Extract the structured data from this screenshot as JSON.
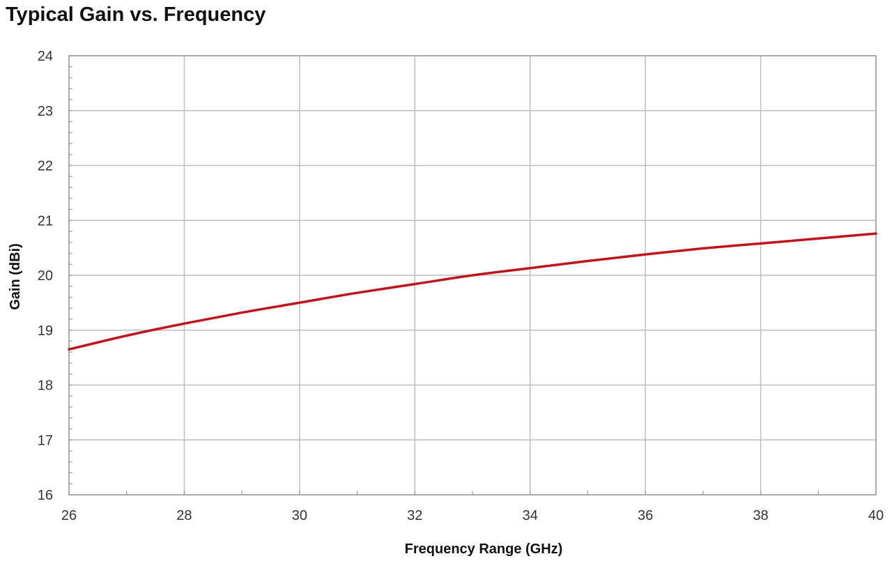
{
  "chart_data": {
    "type": "line",
    "title": "Typical Gain vs. Frequency",
    "xlabel": "Frequency Range (GHz)",
    "ylabel": "Gain (dBi)",
    "xlim": [
      26,
      40
    ],
    "ylim": [
      16,
      24
    ],
    "x_ticks": [
      "26",
      "28",
      "30",
      "32",
      "34",
      "36",
      "38",
      "40"
    ],
    "y_ticks": [
      "16",
      "17",
      "18",
      "19",
      "20",
      "21",
      "22",
      "23",
      "24"
    ],
    "grid": true,
    "legend": "none",
    "series": [
      {
        "color": "#c0141c",
        "x": [
          26,
          27,
          28,
          29,
          30,
          31,
          32,
          33,
          34,
          35,
          36,
          37,
          38,
          39,
          40
        ],
        "y": [
          18.65,
          18.9,
          19.12,
          19.32,
          19.5,
          19.68,
          19.84,
          20.0,
          20.13,
          20.26,
          20.38,
          20.49,
          20.58,
          20.67,
          20.76
        ]
      }
    ]
  }
}
